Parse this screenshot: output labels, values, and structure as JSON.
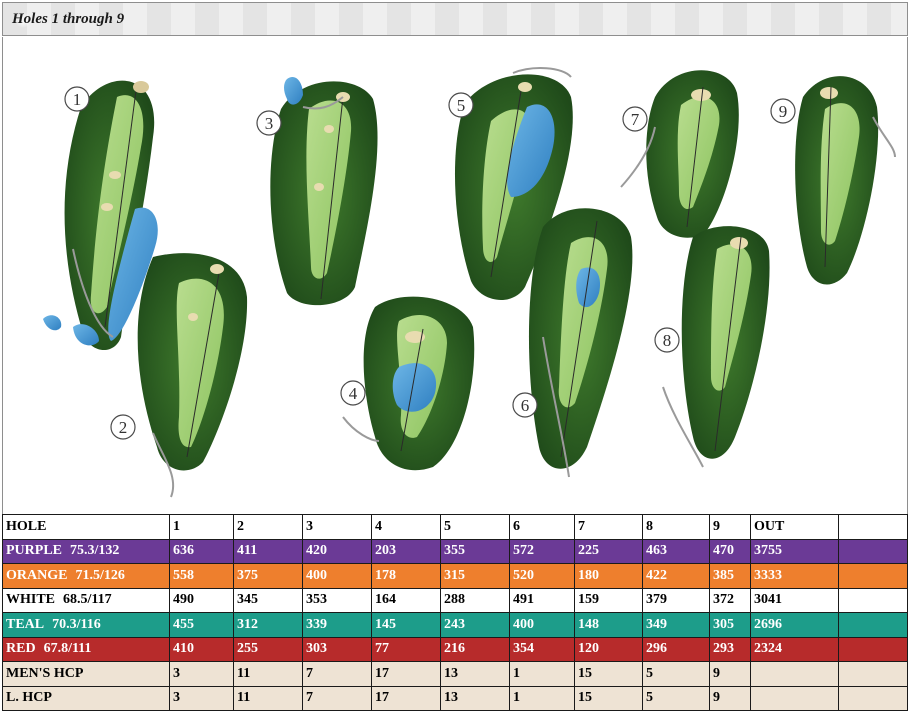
{
  "header": {
    "title": "Holes 1 through 9"
  },
  "map": {
    "hole_markers": [
      "1",
      "2",
      "3",
      "4",
      "5",
      "6",
      "7",
      "8",
      "9"
    ]
  },
  "scorecard": {
    "header_row": {
      "label": "HOLE",
      "cells": [
        "1",
        "2",
        "3",
        "4",
        "5",
        "6",
        "7",
        "8",
        "9",
        "OUT"
      ]
    },
    "tees": [
      {
        "name": "PURPLE",
        "rating": "75.3/132",
        "color": "#6b3a96",
        "cells": [
          "636",
          "411",
          "420",
          "203",
          "355",
          "572",
          "225",
          "463",
          "470",
          "3755"
        ]
      },
      {
        "name": "ORANGE",
        "rating": "71.5/126",
        "color": "#ee7f2d",
        "cells": [
          "558",
          "375",
          "400",
          "178",
          "315",
          "520",
          "180",
          "422",
          "385",
          "3333"
        ]
      },
      {
        "name": "WHITE",
        "rating": "68.5/117",
        "color": "#ffffff",
        "cells": [
          "490",
          "345",
          "353",
          "164",
          "288",
          "491",
          "159",
          "379",
          "372",
          "3041"
        ]
      },
      {
        "name": "TEAL",
        "rating": "70.3/116",
        "color": "#1d9d8a",
        "cells": [
          "455",
          "312",
          "339",
          "145",
          "243",
          "400",
          "148",
          "349",
          "305",
          "2696"
        ]
      },
      {
        "name": "RED",
        "rating": "67.8/111",
        "color": "#b72b2b",
        "cells": [
          "410",
          "255",
          "303",
          "77",
          "216",
          "354",
          "120",
          "296",
          "293",
          "2324"
        ]
      }
    ],
    "handicaps": [
      {
        "label": "MEN'S HCP",
        "cells": [
          "3",
          "11",
          "7",
          "17",
          "13",
          "1",
          "15",
          "5",
          "9",
          ""
        ]
      },
      {
        "label": "L. HCP",
        "cells": [
          "3",
          "11",
          "7",
          "17",
          "13",
          "1",
          "15",
          "5",
          "9",
          ""
        ]
      }
    ]
  }
}
